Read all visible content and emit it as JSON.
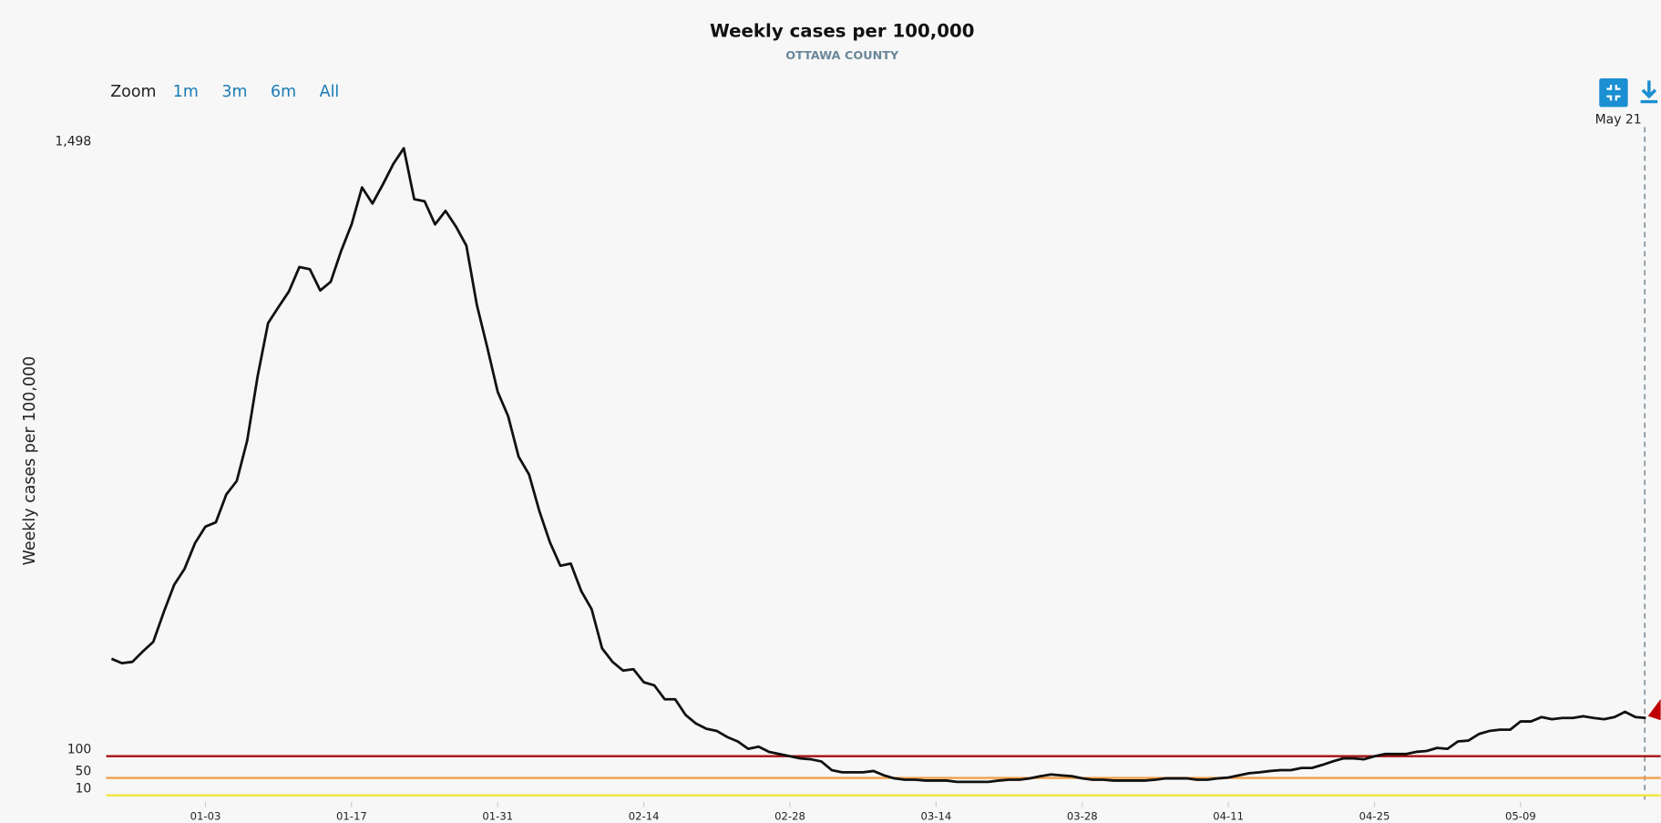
{
  "chart_data": {
    "type": "line",
    "title": "Weekly cases per 100,000",
    "subtitle": "OTTAWA COUNTY",
    "y_axis_label": "Weekly cases per 100,000",
    "zoom": {
      "label": "Zoom",
      "options": [
        "1m",
        "3m",
        "6m",
        "All"
      ]
    },
    "crosshair_label": "May 21",
    "categories": [
      null,
      null,
      null,
      null,
      null,
      null,
      null,
      null,
      null,
      "01-03",
      null,
      null,
      null,
      null,
      null,
      null,
      null,
      null,
      null,
      null,
      null,
      null,
      null,
      "01-17",
      null,
      null,
      null,
      null,
      null,
      null,
      null,
      null,
      null,
      null,
      null,
      null,
      null,
      "01-31",
      null,
      null,
      null,
      null,
      null,
      null,
      null,
      null,
      null,
      null,
      null,
      null,
      null,
      "02-14",
      null,
      null,
      null,
      null,
      null,
      null,
      null,
      null,
      null,
      null,
      null,
      null,
      null,
      "02-28",
      null,
      null,
      null,
      null,
      null,
      null,
      null,
      null,
      null,
      null,
      null,
      null,
      null,
      "03-14",
      null,
      null,
      null,
      null,
      null,
      null,
      null,
      null,
      null,
      null,
      null,
      null,
      null,
      "03-28",
      null,
      null,
      null,
      null,
      null,
      null,
      null,
      null,
      null,
      null,
      null,
      null,
      null,
      "04-11",
      null,
      null,
      null,
      null,
      null,
      null,
      null,
      null,
      null,
      null,
      null,
      null,
      null,
      "04-25",
      null,
      null,
      null,
      null,
      null,
      null,
      null,
      null,
      null,
      null,
      null,
      null,
      null,
      "05-09",
      null,
      null,
      null,
      null,
      null,
      null,
      null,
      null,
      null,
      null,
      null,
      null
    ],
    "series": [
      {
        "name": "Weekly cases per 100,000",
        "color": "#111111",
        "values": [
          324,
          314,
          317,
          341,
          363,
          431,
          494,
          531,
          590,
          628,
          638,
          702,
          733,
          826,
          974,
          1096,
          1133,
          1169,
          1225,
          1220,
          1171,
          1191,
          1262,
          1323,
          1408,
          1371,
          1415,
          1462,
          1498,
          1381,
          1376,
          1323,
          1354,
          1318,
          1274,
          1138,
          1040,
          938,
          882,
          789,
          748,
          663,
          592,
          538,
          543,
          480,
          438,
          348,
          317,
          297,
          300,
          270,
          263,
          231,
          231,
          195,
          175,
          163,
          158,
          144,
          134,
          117,
          122,
          110,
          105,
          100,
          95,
          93,
          88,
          68,
          63,
          63,
          63,
          66,
          56,
          49,
          46,
          46,
          44,
          44,
          44,
          41,
          41,
          41,
          41,
          44,
          46,
          46,
          49,
          54,
          58,
          56,
          54,
          49,
          46,
          46,
          44,
          44,
          44,
          44,
          46,
          49,
          49,
          49,
          46,
          46,
          49,
          51,
          56,
          61,
          63,
          66,
          68,
          68,
          73,
          73,
          80,
          88,
          95,
          95,
          93,
          100,
          105,
          105,
          105,
          110,
          112,
          119,
          117,
          134,
          136,
          151,
          158,
          161,
          161,
          180,
          180,
          190,
          185,
          188,
          188,
          192,
          188,
          185,
          190,
          202,
          190,
          188
        ]
      }
    ],
    "ylim": [
      0,
      1498
    ],
    "yticks": [
      10,
      50,
      100,
      {
        "value": 1498,
        "label": "1,498"
      }
    ],
    "reference_lines": [
      {
        "value": 100,
        "color": "#a50f0f"
      },
      {
        "value": 50,
        "color": "#f0a04b"
      },
      {
        "value": 10,
        "color": "#f2e43c"
      }
    ]
  }
}
